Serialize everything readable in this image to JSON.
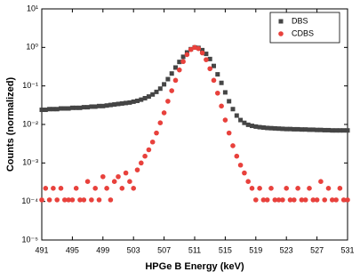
{
  "chart_data": {
    "type": "scatter",
    "xlabel": "HPGe B Energy (keV)",
    "ylabel": "Counts (normalized)",
    "log_y": true,
    "legend": "upper right",
    "xlim": [
      491,
      531
    ],
    "xticks": [
      491,
      495,
      499,
      503,
      507,
      511,
      515,
      519,
      523,
      527,
      531
    ],
    "ylim": [
      1e-05,
      10
    ],
    "yticks": [
      {
        "value": 1e-05,
        "label": "10⁻⁵"
      },
      {
        "value": 0.0001,
        "label": "10⁻⁴"
      },
      {
        "value": 0.001,
        "label": "10⁻³"
      },
      {
        "value": 0.01,
        "label": "10⁻²"
      },
      {
        "value": 0.1,
        "label": "10⁻¹"
      },
      {
        "value": 1,
        "label": "10⁰"
      },
      {
        "value": 10,
        "label": "10¹"
      }
    ],
    "x": [
      491,
      491.5,
      492,
      492.5,
      493,
      493.5,
      494,
      494.5,
      495,
      495.5,
      496,
      496.5,
      497,
      497.5,
      498,
      498.5,
      499,
      499.5,
      500,
      500.5,
      501,
      501.5,
      502,
      502.5,
      503,
      503.5,
      504,
      504.5,
      505,
      505.5,
      506,
      506.5,
      507,
      507.5,
      508,
      508.5,
      509,
      509.5,
      510,
      510.5,
      511,
      511.5,
      512,
      512.5,
      513,
      513.5,
      514,
      514.5,
      515,
      515.5,
      516,
      516.5,
      517,
      517.5,
      518,
      518.5,
      519,
      519.5,
      520,
      520.5,
      521,
      521.5,
      522,
      522.5,
      523,
      523.5,
      524,
      524.5,
      525,
      525.5,
      526,
      526.5,
      527,
      527.5,
      528,
      528.5,
      529,
      529.5,
      530,
      530.5,
      531
    ],
    "series": [
      {
        "name": "DBS",
        "color": "#454545",
        "marker": "square",
        "values": [
          0.024,
          0.024,
          0.025,
          0.025,
          0.025,
          0.026,
          0.026,
          0.026,
          0.027,
          0.027,
          0.027,
          0.028,
          0.028,
          0.029,
          0.029,
          0.03,
          0.03,
          0.031,
          0.032,
          0.033,
          0.034,
          0.035,
          0.036,
          0.037,
          0.039,
          0.041,
          0.044,
          0.048,
          0.053,
          0.06,
          0.07,
          0.085,
          0.11,
          0.15,
          0.21,
          0.3,
          0.42,
          0.57,
          0.74,
          0.9,
          1.0,
          0.97,
          0.85,
          0.68,
          0.5,
          0.33,
          0.2,
          0.12,
          0.068,
          0.04,
          0.025,
          0.017,
          0.013,
          0.011,
          0.0098,
          0.0092,
          0.0088,
          0.0085,
          0.0083,
          0.0081,
          0.008,
          0.0079,
          0.0078,
          0.0077,
          0.0076,
          0.0076,
          0.0075,
          0.0075,
          0.0074,
          0.0074,
          0.0073,
          0.0073,
          0.0072,
          0.0072,
          0.0071,
          0.0071,
          0.007,
          0.007,
          0.007,
          0.007,
          0.007
        ]
      },
      {
        "name": "CDBS",
        "color": "#e8413c",
        "marker": "circle",
        "values": [
          0.00011,
          0.00022,
          0.00011,
          0.00022,
          0.00011,
          0.00022,
          0.00011,
          0.00011,
          0.00011,
          0.00022,
          0.00011,
          0.00011,
          0.00033,
          0.00011,
          0.00022,
          0.00011,
          0.00044,
          0.00022,
          0.00011,
          0.00033,
          0.00044,
          0.00022,
          0.00055,
          0.00033,
          0.00022,
          0.00066,
          0.001,
          0.0015,
          0.0022,
          0.0035,
          0.006,
          0.011,
          0.02,
          0.04,
          0.075,
          0.14,
          0.26,
          0.43,
          0.65,
          0.88,
          1.0,
          0.93,
          0.72,
          0.48,
          0.28,
          0.14,
          0.065,
          0.03,
          0.013,
          0.006,
          0.0028,
          0.0015,
          0.00088,
          0.00055,
          0.00033,
          0.00022,
          0.00011,
          0.00022,
          0.00011,
          0.00011,
          0.00022,
          0.00011,
          0.00011,
          0.00011,
          0.00022,
          0.00011,
          0.00011,
          0.00022,
          0.00011,
          0.00011,
          0.00022,
          0.00011,
          0.00011,
          0.00033,
          0.00011,
          0.00022,
          0.00011,
          0.00011,
          0.00022,
          0.00011,
          0.00011
        ]
      }
    ]
  }
}
